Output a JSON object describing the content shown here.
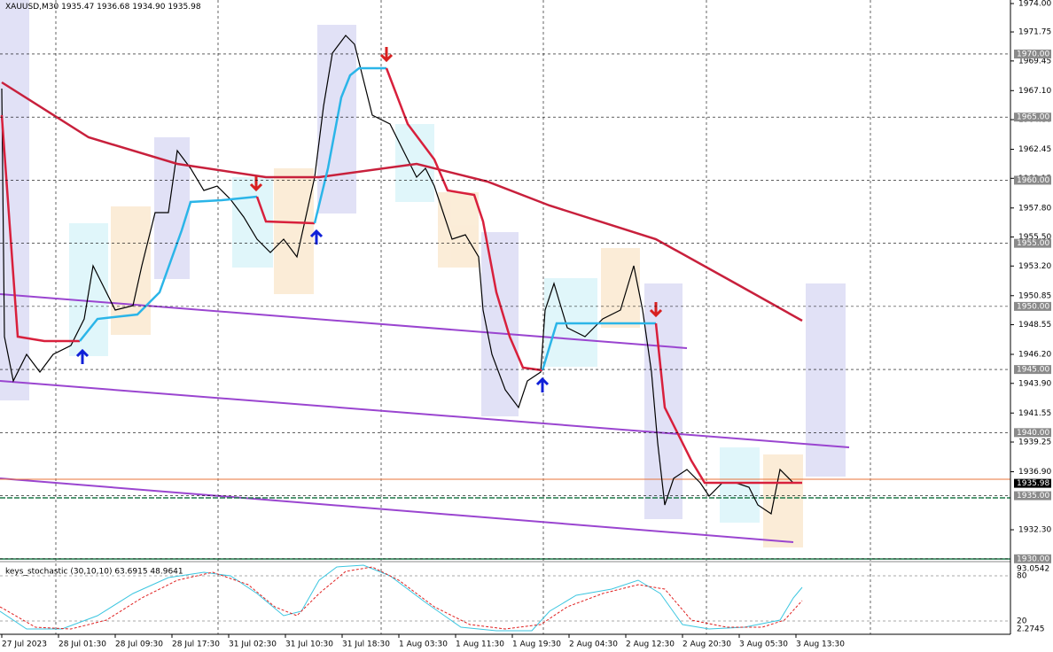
{
  "header": {
    "symbol": "XAUUSD,M30",
    "ohlc": "1935.47 1936.68 1934.90 1935.98"
  },
  "price_axis": {
    "labels": [
      "1974.00",
      "1971.75",
      "1969.45",
      "1967.10",
      "1964.80",
      "1962.45",
      "1960.15",
      "1957.80",
      "1955.50",
      "1953.20",
      "1950.85",
      "1948.55",
      "1946.20",
      "1943.90",
      "1941.55",
      "1939.25",
      "1936.90",
      "1932.30"
    ],
    "levels": [
      "1970.00",
      "1965.00",
      "1960.00",
      "1955.00",
      "1950.00",
      "1945.00",
      "1940.00",
      "1935.00",
      "1930.00"
    ],
    "current": "1935.98"
  },
  "time_axis": {
    "labels": [
      "27 Jul 2023",
      "28 Jul 01:30",
      "28 Jul 09:30",
      "28 Jul 17:30",
      "31 Jul 02:30",
      "31 Jul 10:30",
      "31 Jul 18:30",
      "1 Aug 03:30",
      "1 Aug 11:30",
      "1 Aug 19:30",
      "2 Aug 04:30",
      "2 Aug 12:30",
      "2 Aug 20:30",
      "3 Aug 05:30",
      "3 Aug 13:30"
    ]
  },
  "indicator": {
    "title": "keys_stochastic (30,10,10) 63.6915 48.9641",
    "axis": [
      "93.0542",
      "80",
      "20",
      "2.2745"
    ]
  }
}
